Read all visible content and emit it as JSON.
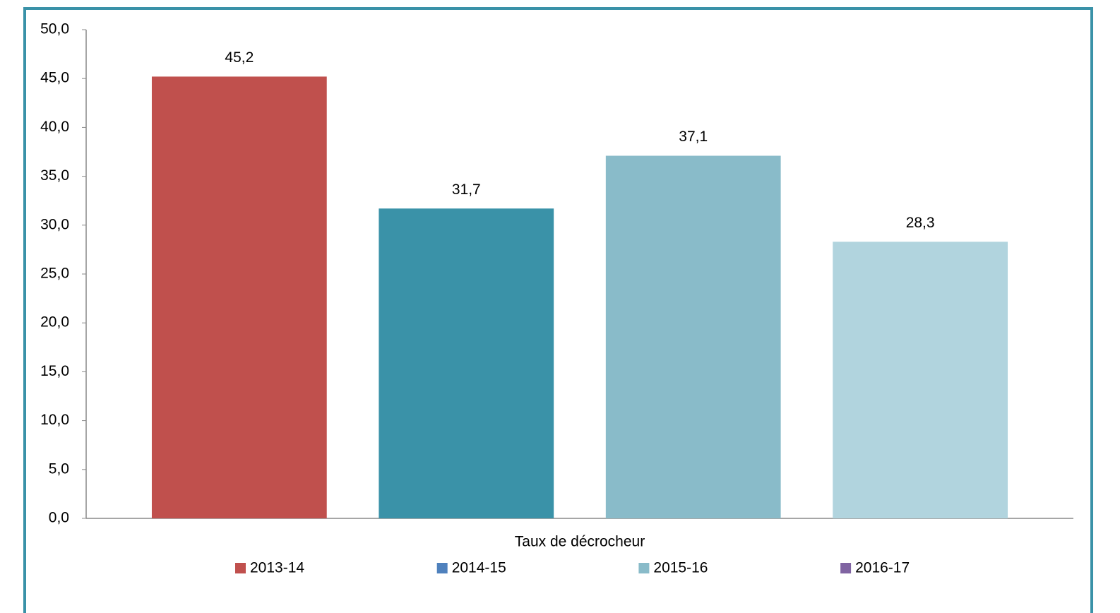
{
  "chart_data": {
    "type": "bar",
    "categories": [
      "Taux de décrocheur"
    ],
    "series": [
      {
        "name": "2013-14",
        "color": "#c0504d",
        "legend_color": "#c0504d",
        "values": [
          45.2
        ],
        "value_labels": [
          "45,2"
        ]
      },
      {
        "name": "2014-15",
        "color": "#3a92a8",
        "legend_color": "#4f81bd",
        "values": [
          31.7
        ],
        "value_labels": [
          "31,7"
        ]
      },
      {
        "name": "2015-16",
        "color": "#89bbc9",
        "legend_color": "#89bbc9",
        "values": [
          37.1
        ],
        "value_labels": [
          "37,1"
        ]
      },
      {
        "name": "2016-17",
        "color": "#b1d4de",
        "legend_color": "#8064a2",
        "values": [
          28.3
        ],
        "value_labels": [
          "28,3"
        ]
      }
    ],
    "ylim": [
      0,
      50
    ],
    "yticks": [
      {
        "value": 0,
        "label": "0,0"
      },
      {
        "value": 5,
        "label": "5,0"
      },
      {
        "value": 10,
        "label": "10,0"
      },
      {
        "value": 15,
        "label": "15,0"
      },
      {
        "value": 20,
        "label": "20,0"
      },
      {
        "value": 25,
        "label": "25,0"
      },
      {
        "value": 30,
        "label": "30,0"
      },
      {
        "value": 35,
        "label": "35,0"
      },
      {
        "value": 40,
        "label": "40,0"
      },
      {
        "value": 45,
        "label": "45,0"
      },
      {
        "value": 50,
        "label": "50,0"
      }
    ],
    "grid": false,
    "legend": "bottom"
  }
}
